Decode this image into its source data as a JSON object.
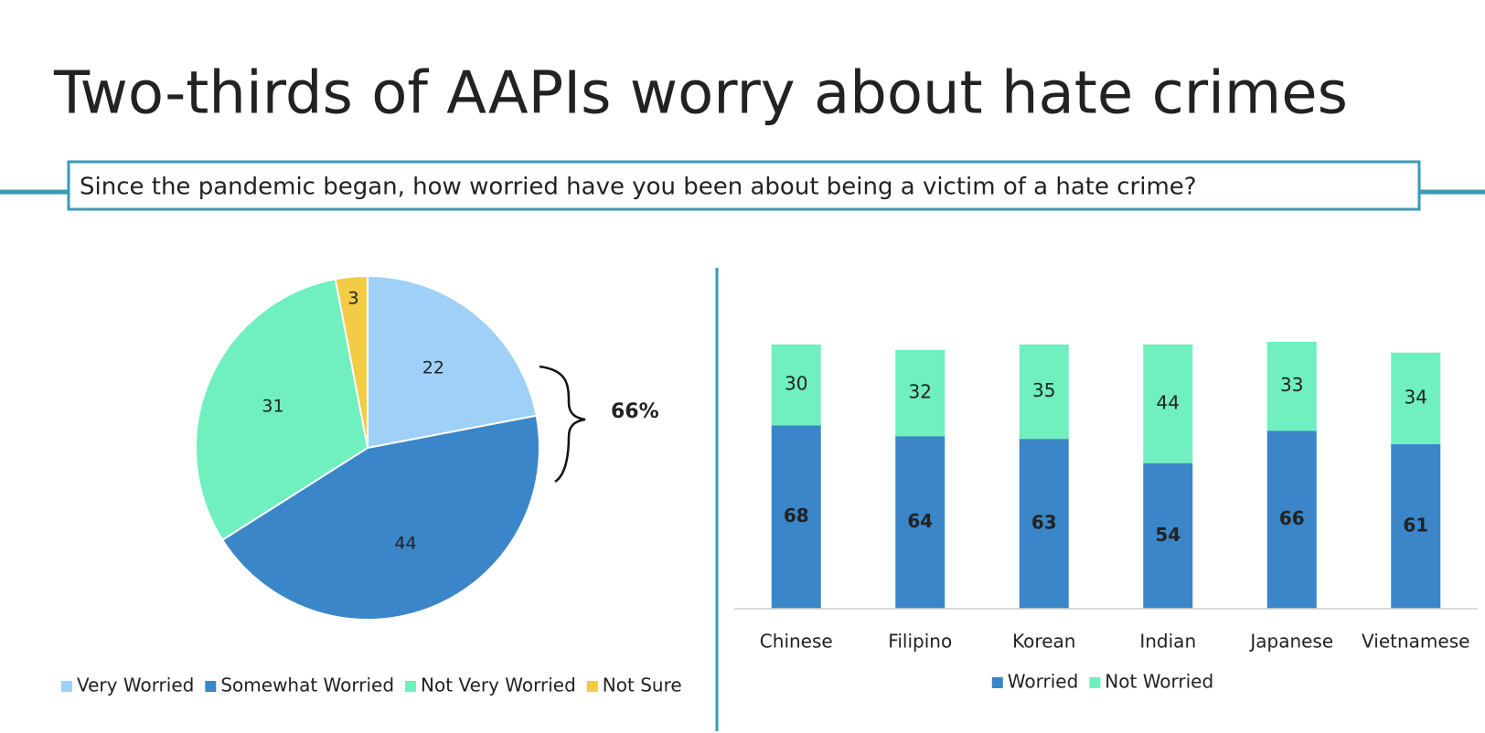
{
  "title": "Two-thirds of AAPIs worry about hate crimes",
  "question": "Since the pandemic began, how worried have you been about being a victim of a hate crime?",
  "chart_data": [
    {
      "type": "pie",
      "categories": [
        "Very Worried",
        "Somewhat Worried",
        "Not Very Worried",
        "Not Sure"
      ],
      "values": [
        22,
        44,
        31,
        3
      ],
      "colors": [
        "#9fd0f7",
        "#3a86c8",
        "#6ff0be",
        "#f4cb45"
      ],
      "annotation": "66%",
      "legend": "bottom"
    },
    {
      "type": "stacked-bar",
      "categories": [
        "Chinese",
        "Filipino",
        "Korean",
        "Indian",
        "Japanese",
        "Vietnamese"
      ],
      "series": [
        {
          "name": "Worried",
          "color": "#3a86c8",
          "values": [
            68,
            64,
            63,
            54,
            66,
            61
          ]
        },
        {
          "name": "Not Worried",
          "color": "#6ff0be",
          "values": [
            30,
            32,
            35,
            44,
            33,
            34
          ]
        }
      ],
      "ylim": [
        0,
        100
      ],
      "legend": "bottom"
    }
  ]
}
